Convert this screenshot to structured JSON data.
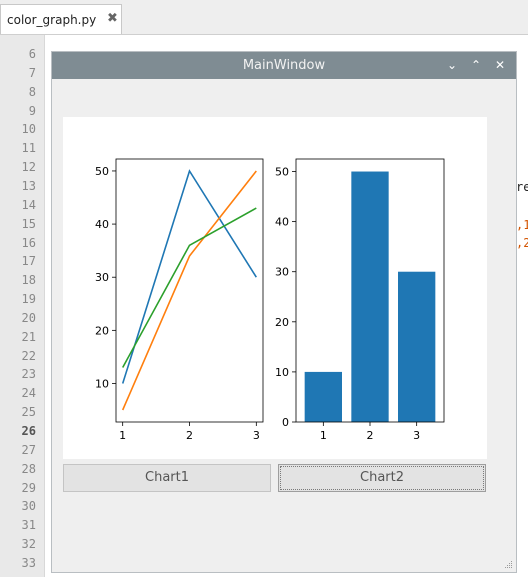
{
  "editor": {
    "tab": {
      "filename": "color_graph.py",
      "close_icon": "✖"
    },
    "line_numbers": [
      "6",
      "7",
      "8",
      "9",
      "10",
      "11",
      "12",
      "13",
      "14",
      "15",
      "16",
      "17",
      "18",
      "19",
      "20",
      "21",
      "22",
      "23",
      "24",
      "25",
      "26",
      "27",
      "28",
      "29",
      "30",
      "31",
      "32",
      "33"
    ],
    "current_line": "26",
    "code_fragments": [
      {
        "text": "re",
        "color": "#222222"
      },
      {
        "text": ",1",
        "color": "#d35400"
      },
      {
        "text": ",2",
        "color": "#d35400"
      }
    ]
  },
  "window": {
    "title": "MainWindow",
    "controls": {
      "minimize": "⌄",
      "maximize": "⌃",
      "close": "✕"
    },
    "buttons": {
      "chart1": "Chart1",
      "chart2": "Chart2"
    }
  },
  "chart_data": [
    {
      "type": "line",
      "x": [
        1,
        2,
        3
      ],
      "series": [
        {
          "values": [
            10,
            50,
            30
          ],
          "color": "#1f77b4"
        },
        {
          "values": [
            5,
            34,
            50
          ],
          "color": "#ff7f0e"
        },
        {
          "values": [
            13,
            36,
            43
          ],
          "color": "#2ca02c"
        }
      ],
      "xticks": [
        "1",
        "2",
        "3"
      ],
      "yticks": [
        "10",
        "20",
        "30",
        "40",
        "50"
      ],
      "ylim": [
        2.75,
        52.25
      ],
      "xlim": [
        0.9,
        3.1
      ]
    },
    {
      "type": "bar",
      "categories": [
        "1",
        "2",
        "3"
      ],
      "values": [
        10,
        50,
        30
      ],
      "color": "#1f77b4",
      "yticks": [
        "0",
        "10",
        "20",
        "30",
        "40",
        "50"
      ],
      "ylim": [
        0,
        52.5
      ]
    }
  ]
}
